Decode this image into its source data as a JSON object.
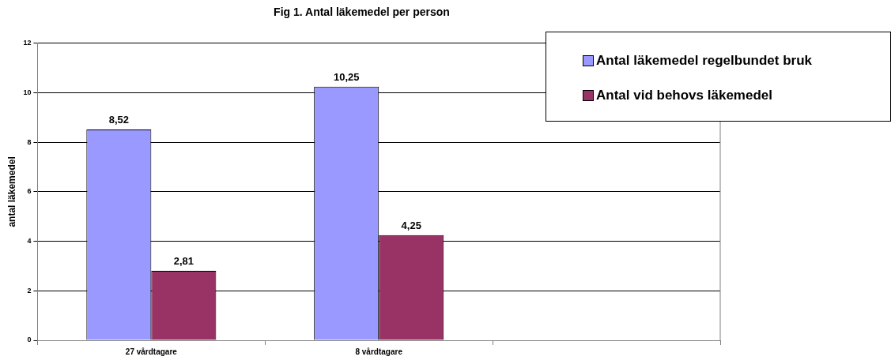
{
  "chart_data": {
    "type": "bar",
    "title": "Fig 1. Antal läkemedel per person",
    "ylabel": "antal läkemedel",
    "categories": [
      "27 vårdtagare",
      "8 vårdtagare",
      null
    ],
    "series": [
      {
        "name": "Antal läkemedel regelbundet bruk",
        "color": "#9999ff",
        "values": [
          8.52,
          10.25,
          null
        ],
        "value_labels": [
          "8,52",
          "10,25",
          null
        ]
      },
      {
        "name": "Antal vid behovs läkemedel",
        "color": "#993366",
        "values": [
          2.81,
          4.25,
          null
        ],
        "value_labels": [
          "2,81",
          "4,25",
          null
        ]
      }
    ],
    "ylim": [
      0,
      12
    ],
    "yticks": [
      0,
      2,
      4,
      6,
      8,
      10,
      12
    ],
    "grid": "y",
    "legend": "top right"
  }
}
